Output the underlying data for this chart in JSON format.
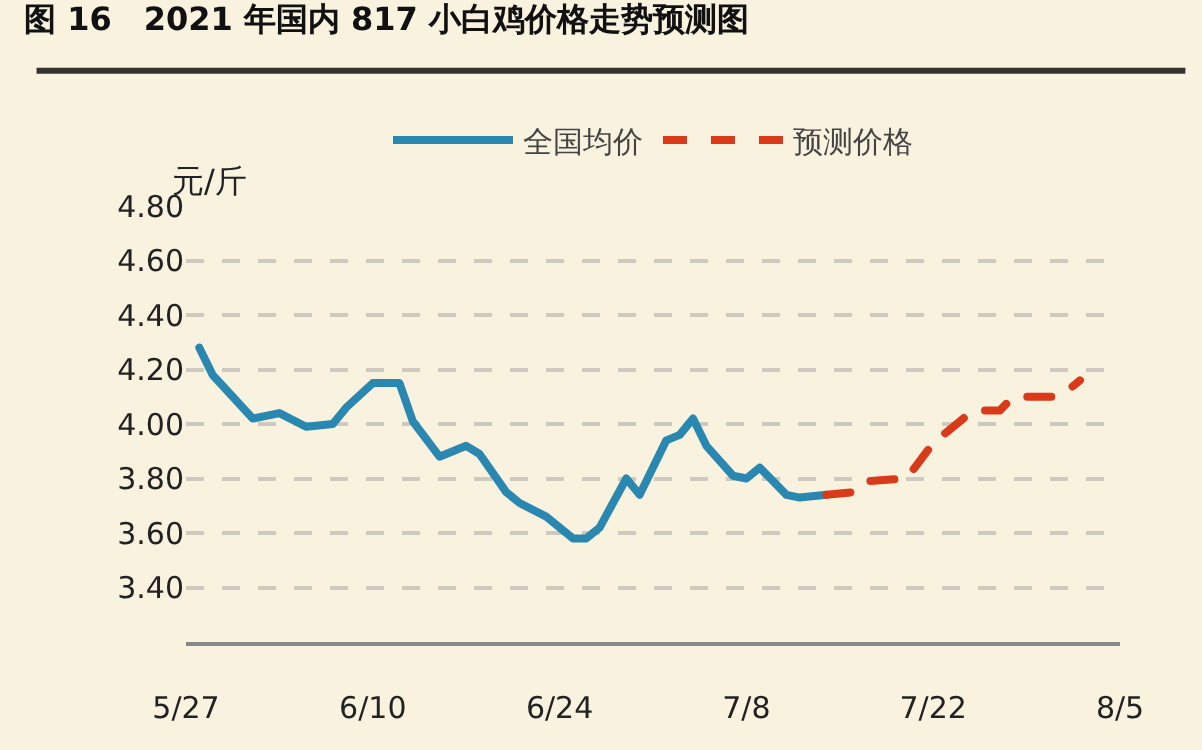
{
  "chart_data": {
    "type": "line",
    "title": "图 16　2021 年国内 817 小白鸡价格走势预测图",
    "ylabel": "元/斤",
    "series": [
      {
        "name": "全国均价",
        "color": "#2a87b0",
        "line_style": "solid",
        "x": [
          "--05-28",
          "--05-29",
          "--06-01",
          "--06-03",
          "--06-05",
          "--06-07",
          "--06-08",
          "--06-10",
          "--06-12",
          "--06-13",
          "--06-15",
          "--06-17",
          "--06-18",
          "--06-20",
          "--06-21",
          "--06-23",
          "--06-25",
          "--06-26",
          "--06-27",
          "--06-29",
          "--06-30",
          "--07-02",
          "--07-03",
          "--07-04",
          "--07-05",
          "--07-07",
          "--07-08",
          "--07-09",
          "--07-11",
          "--07-12",
          "--07-14"
        ],
        "values": [
          4.28,
          4.18,
          4.02,
          4.04,
          3.99,
          4.0,
          4.06,
          4.15,
          4.15,
          4.01,
          3.88,
          3.92,
          3.89,
          3.75,
          3.71,
          3.66,
          3.58,
          3.58,
          3.62,
          3.8,
          3.74,
          3.94,
          3.96,
          4.02,
          3.92,
          3.81,
          3.8,
          3.84,
          3.74,
          3.73,
          3.74
        ]
      },
      {
        "name": "预测价格",
        "color": "#d93a1a",
        "line_style": "dashed",
        "x": [
          "--07-14",
          "--07-16",
          "--07-17",
          "--07-20",
          "--07-22",
          "--07-24",
          "--07-25",
          "--07-27",
          "--07-28",
          "--07-31",
          "--08-01",
          "--08-02"
        ],
        "values": [
          3.74,
          3.75,
          3.79,
          3.8,
          3.93,
          4.01,
          4.05,
          4.05,
          4.1,
          4.1,
          4.12,
          4.16
        ]
      }
    ],
    "xlim": [
      "--05-27",
      "--08-05"
    ],
    "xticks": [
      {
        "value": "--05-27",
        "label": "5/27"
      },
      {
        "value": "--06-10",
        "label": "6/10"
      },
      {
        "value": "--06-24",
        "label": "6/24"
      },
      {
        "value": "--07-08",
        "label": "7/8"
      },
      {
        "value": "--07-22",
        "label": "7/22"
      },
      {
        "value": "--08-05",
        "label": "8/5"
      }
    ],
    "ylim": [
      3.2,
      4.8
    ],
    "yticks": [
      {
        "value": 3.4,
        "label": "3.40"
      },
      {
        "value": 3.6,
        "label": "3.60"
      },
      {
        "value": 3.8,
        "label": "3.80"
      },
      {
        "value": 4.0,
        "label": "4.00"
      },
      {
        "value": 4.2,
        "label": "4.20"
      },
      {
        "value": 4.4,
        "label": "4.40"
      },
      {
        "value": 4.6,
        "label": "4.60"
      },
      {
        "value": 4.8,
        "label": "4.80"
      }
    ],
    "grid": "y",
    "legend": "top",
    "marker": "none"
  }
}
